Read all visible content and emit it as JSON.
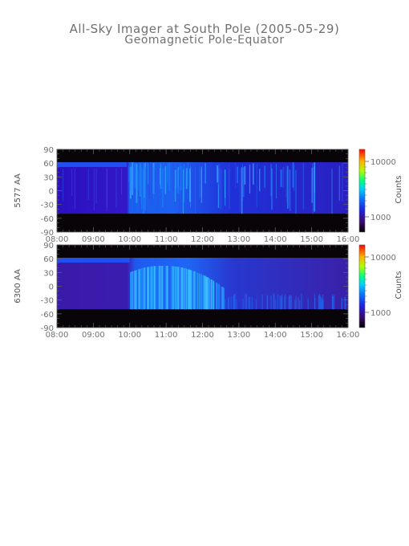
{
  "header": {
    "title": "All-Sky Imager at South Pole (2005-05-29)",
    "subtitle": "Geomagnetic Pole-Equator"
  },
  "chart_data": [
    {
      "type": "heatmap",
      "ylabel": "5577 AA",
      "x_tick_labels": [
        "08:00",
        "09:00",
        "10:00",
        "11:00",
        "12:00",
        "13:00",
        "14:00",
        "15:00",
        "16:00"
      ],
      "x_range": [
        "08:00",
        "16:00"
      ],
      "y_tick_labels": [
        "90",
        "60",
        "30",
        "0",
        "-30",
        "-60",
        "-90"
      ],
      "ylim": [
        -90,
        90
      ],
      "colorbar": {
        "label": "Counts",
        "tick_labels": [
          "10000",
          "1000"
        ],
        "scale": "log"
      }
    },
    {
      "type": "heatmap",
      "ylabel": "6300 AA",
      "x_tick_labels": [
        "08:00",
        "09:00",
        "10:00",
        "11:00",
        "12:00",
        "13:00",
        "14:00",
        "15:00",
        "16:00"
      ],
      "x_range": [
        "08:00",
        "16:00"
      ],
      "y_tick_labels": [
        "90",
        "60",
        "30",
        "0",
        "-30",
        "-60",
        "-90"
      ],
      "ylim": [
        -90,
        90
      ],
      "colorbar": {
        "label": "Counts",
        "tick_labels": [
          "10000",
          "1000"
        ],
        "scale": "log"
      }
    }
  ]
}
